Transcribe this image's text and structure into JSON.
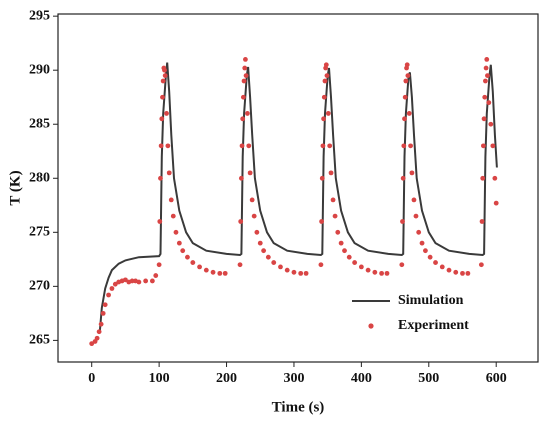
{
  "chart_data": {
    "type": "line",
    "xlabel": "Time (s)",
    "ylabel": "T (K)",
    "xlim": [
      -50,
      662
    ],
    "xticks": [
      0,
      100,
      200,
      300,
      400,
      500,
      600
    ],
    "ylim": [
      263,
      295.2
    ],
    "yticks": [
      265,
      270,
      275,
      280,
      285,
      290,
      295
    ],
    "legend": "lower right",
    "series": [
      {
        "name": "Simulation",
        "color": "#3a3a3a",
        "mode": "line",
        "x": [
          12,
          15,
          20,
          25,
          30,
          40,
          50,
          70,
          100,
          102,
          104,
          106,
          110,
          112,
          115,
          118,
          122,
          130,
          140,
          150,
          170,
          200,
          220,
          222,
          224,
          226,
          230,
          232,
          235,
          238,
          242,
          250,
          260,
          270,
          290,
          320,
          340,
          342,
          344,
          346,
          350,
          352,
          355,
          358,
          362,
          370,
          380,
          390,
          410,
          440,
          460,
          462,
          464,
          466,
          470,
          472,
          475,
          478,
          482,
          490,
          500,
          510,
          530,
          560,
          580,
          582,
          584,
          586,
          590,
          592,
          595,
          598,
          601
        ],
        "values": [
          265.8,
          268,
          269.8,
          270.8,
          271.5,
          272.1,
          272.4,
          272.7,
          272.8,
          273,
          282,
          286,
          289.5,
          290.7,
          288,
          284,
          280,
          277,
          275,
          274,
          273.3,
          273,
          272.9,
          273,
          282,
          286,
          289.5,
          290.3,
          287.5,
          284,
          280,
          277,
          275,
          274,
          273.3,
          273,
          272.9,
          273,
          282,
          286,
          289.5,
          290.2,
          287.5,
          284,
          280,
          277,
          275,
          274,
          273.3,
          273,
          272.9,
          273,
          282,
          286,
          289.5,
          289.8,
          287.5,
          284,
          280,
          277,
          275,
          274,
          273.3,
          273,
          272.9,
          273,
          282,
          286,
          289.5,
          290.5,
          288,
          284,
          281
        ]
      },
      {
        "name": "Experiment",
        "color": "#d94545",
        "mode": "markers",
        "x": [
          0,
          5,
          8,
          11,
          14,
          17,
          20,
          25,
          30,
          35,
          40,
          45,
          50,
          55,
          60,
          65,
          70,
          80,
          90,
          95,
          100,
          101,
          102,
          103,
          104,
          105,
          106,
          107,
          108,
          109,
          111,
          113,
          115,
          118,
          121,
          125,
          130,
          135,
          142,
          150,
          160,
          170,
          180,
          190,
          198,
          220,
          221,
          222,
          223,
          224,
          225,
          226,
          227,
          228,
          229,
          231,
          233,
          235,
          238,
          241,
          245,
          250,
          255,
          262,
          270,
          280,
          290,
          300,
          310,
          318,
          340,
          341,
          342,
          343,
          344,
          345,
          346,
          347,
          348,
          349,
          351,
          353,
          355,
          358,
          361,
          365,
          370,
          375,
          382,
          390,
          400,
          410,
          420,
          430,
          438,
          460,
          461,
          462,
          463,
          464,
          465,
          466,
          467,
          468,
          469,
          471,
          473,
          475,
          478,
          481,
          485,
          490,
          495,
          502,
          510,
          520,
          530,
          540,
          550,
          558,
          578,
          579,
          580,
          581,
          582,
          583,
          584,
          585,
          586,
          587,
          589,
          592,
          595,
          598,
          600
        ],
        "values": [
          264.7,
          264.9,
          265.2,
          265.8,
          266.5,
          267.5,
          268.3,
          269.2,
          269.8,
          270.2,
          270.4,
          270.5,
          270.6,
          270.4,
          270.5,
          270.5,
          270.4,
          270.5,
          270.5,
          271,
          272,
          276,
          280,
          283,
          285.5,
          287.5,
          289,
          290.2,
          290,
          289.5,
          286,
          283,
          280.5,
          278,
          276.5,
          275,
          274,
          273.3,
          272.7,
          272.2,
          271.8,
          271.5,
          271.3,
          271.2,
          271.2,
          272,
          276,
          280,
          283,
          285.5,
          287.5,
          289,
          290.2,
          291,
          289.5,
          286,
          283,
          280.5,
          278,
          276.5,
          275,
          274,
          273.3,
          272.7,
          272.2,
          271.8,
          271.5,
          271.3,
          271.2,
          271.2,
          272,
          276,
          280,
          283,
          285.5,
          287.5,
          289,
          290.2,
          290.5,
          289.5,
          286,
          283,
          280.5,
          278,
          276.5,
          275,
          274,
          273.3,
          272.7,
          272.2,
          271.8,
          271.5,
          271.3,
          271.2,
          271.2,
          272,
          276,
          280,
          283,
          285.5,
          287.5,
          289,
          290.2,
          290.5,
          289.5,
          286,
          283,
          280.5,
          278,
          276.5,
          275,
          274,
          273.3,
          272.7,
          272.2,
          271.8,
          271.5,
          271.3,
          271.2,
          271.2,
          272,
          276,
          280,
          283,
          285.5,
          287.5,
          289,
          290.2,
          291,
          289.5,
          287,
          285,
          283,
          280,
          277.7
        ]
      }
    ]
  }
}
